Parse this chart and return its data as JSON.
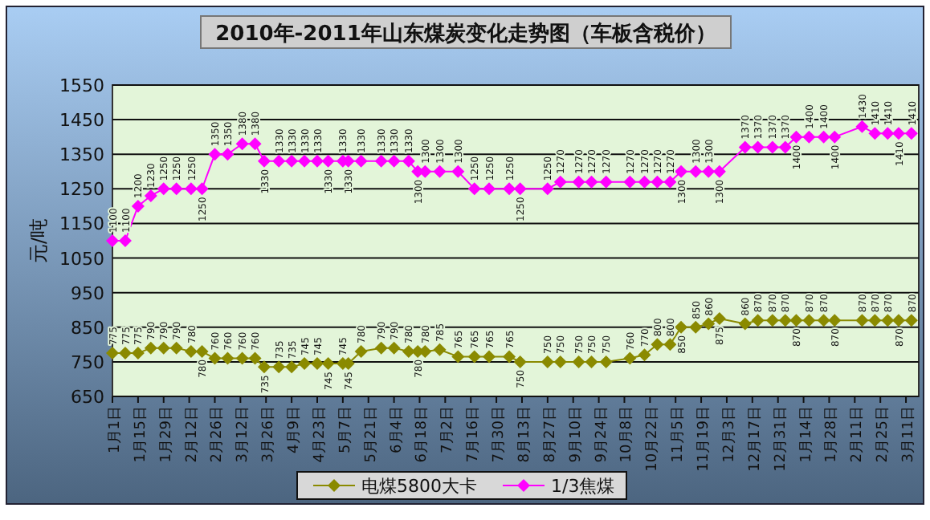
{
  "chart_data": {
    "type": "line",
    "title": "2010年-2011年山东煤炭变化走势图（车板含税价）",
    "ylabel": "元/吨",
    "x": [
      "2010-01-01",
      "2010-01-08",
      "2010-01-15",
      "2010-01-22",
      "2010-01-29",
      "2010-02-05",
      "2010-02-13",
      "2010-02-19",
      "2010-02-26",
      "2010-03-05",
      "2010-03-13",
      "2010-03-20",
      "2010-03-25",
      "2010-04-02",
      "2010-04-09",
      "2010-04-16",
      "2010-04-23",
      "2010-04-29",
      "2010-05-07",
      "2010-05-10",
      "2010-05-17",
      "2010-05-28",
      "2010-06-04",
      "2010-06-12",
      "2010-06-17",
      "2010-06-21",
      "2010-06-29",
      "2010-07-09",
      "2010-07-18",
      "2010-07-26",
      "2010-08-06",
      "2010-08-12",
      "2010-08-27",
      "2010-09-03",
      "2010-09-13",
      "2010-09-20",
      "2010-09-28",
      "2010-10-11",
      "2010-10-19",
      "2010-10-26",
      "2010-11-02",
      "2010-11-08",
      "2010-11-16",
      "2010-11-23",
      "2010-11-29",
      "2010-12-13",
      "2010-12-20",
      "2010-12-28",
      "2011-01-04",
      "2011-01-10",
      "2011-01-17",
      "2011-01-25",
      "2011-01-31",
      "2011-02-15",
      "2011-02-22",
      "2011-03-01",
      "2011-03-07",
      "2011-03-14"
    ],
    "series": [
      {
        "name": "电煤5800大卡",
        "color": "#8a8a00",
        "values": [
          775,
          775,
          775,
          790,
          790,
          790,
          780,
          780,
          760,
          760,
          760,
          760,
          735,
          735,
          735,
          745,
          745,
          745,
          745,
          745,
          780,
          790,
          790,
          780,
          780,
          780,
          785,
          765,
          765,
          765,
          765,
          750,
          750,
          750,
          750,
          750,
          750,
          760,
          770,
          800,
          800,
          850,
          850,
          860,
          875,
          860,
          870,
          870,
          870,
          870,
          870,
          870,
          870,
          870,
          870,
          870,
          870,
          870
        ]
      },
      {
        "name": "1/3焦煤",
        "color": "#ff00ff",
        "values": [
          1100,
          1100,
          1200,
          1230,
          1250,
          1250,
          1250,
          1250,
          1350,
          1350,
          1380,
          1380,
          1330,
          1330,
          1330,
          1330,
          1330,
          1330,
          1330,
          1330,
          1330,
          1330,
          1330,
          1330,
          1300,
          1300,
          1300,
          1300,
          1250,
          1250,
          1250,
          1250,
          1250,
          1270,
          1270,
          1270,
          1270,
          1270,
          1270,
          1270,
          1270,
          1300,
          1300,
          1300,
          1300,
          1370,
          1370,
          1370,
          1370,
          1400,
          1400,
          1400,
          1400,
          1430,
          1410,
          1410,
          1410,
          1410
        ]
      }
    ],
    "xlim": [
      "2010-01-01",
      "2011-03-18"
    ],
    "xticks": [
      {
        "value": "2010-01-01",
        "label": "1月1日"
      },
      {
        "value": "2010-01-15",
        "label": "1月15日"
      },
      {
        "value": "2010-01-29",
        "label": "1月29日"
      },
      {
        "value": "2010-02-12",
        "label": "2月12日"
      },
      {
        "value": "2010-02-26",
        "label": "2月26日"
      },
      {
        "value": "2010-03-12",
        "label": "3月12日"
      },
      {
        "value": "2010-03-26",
        "label": "3月26日"
      },
      {
        "value": "2010-04-09",
        "label": "4月9日"
      },
      {
        "value": "2010-04-23",
        "label": "4月23日"
      },
      {
        "value": "2010-05-07",
        "label": "5月7日"
      },
      {
        "value": "2010-05-21",
        "label": "5月21日"
      },
      {
        "value": "2010-06-04",
        "label": "6月4日"
      },
      {
        "value": "2010-06-18",
        "label": "6月18日"
      },
      {
        "value": "2010-07-02",
        "label": "7月2日"
      },
      {
        "value": "2010-07-16",
        "label": "7月16日"
      },
      {
        "value": "2010-07-30",
        "label": "7月30日"
      },
      {
        "value": "2010-08-13",
        "label": "8月13日"
      },
      {
        "value": "2010-08-27",
        "label": "8月27日"
      },
      {
        "value": "2010-09-10",
        "label": "9月10日"
      },
      {
        "value": "2010-09-24",
        "label": "9月24日"
      },
      {
        "value": "2010-10-08",
        "label": "10月8日"
      },
      {
        "value": "2010-10-22",
        "label": "10月22日"
      },
      {
        "value": "2010-11-05",
        "label": "11月5日"
      },
      {
        "value": "2010-11-19",
        "label": "11月19日"
      },
      {
        "value": "2010-12-03",
        "label": "12月3日"
      },
      {
        "value": "2010-12-17",
        "label": "12月17日"
      },
      {
        "value": "2010-12-31",
        "label": "12月31日"
      },
      {
        "value": "2011-01-14",
        "label": "1月14日"
      },
      {
        "value": "2011-01-28",
        "label": "1月28日"
      },
      {
        "value": "2011-02-11",
        "label": "2月11日"
      },
      {
        "value": "2011-02-25",
        "label": "2月25日"
      },
      {
        "value": "2011-03-11",
        "label": "3月11日"
      }
    ],
    "ylim": [
      650,
      1550
    ],
    "yticks": [
      650,
      750,
      850,
      950,
      1050,
      1150,
      1250,
      1350,
      1450,
      1550
    ],
    "grid": "y",
    "legend": "bottom",
    "marker": "diamond",
    "data_labels": true
  }
}
